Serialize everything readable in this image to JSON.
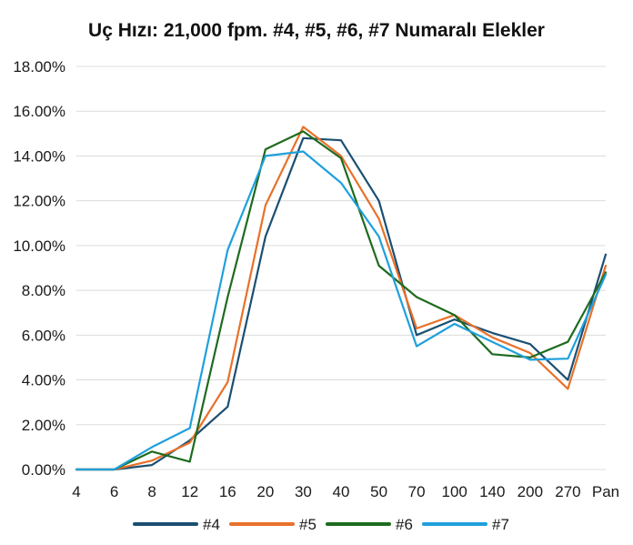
{
  "chart_data": {
    "type": "line",
    "title": "Uç Hızı: 21,000 fpm. #4, #5, #6, #7 Numaralı Elekler",
    "xlabel": "",
    "ylabel": "",
    "categories": [
      "4",
      "6",
      "8",
      "12",
      "16",
      "20",
      "30",
      "40",
      "50",
      "70",
      "100",
      "140",
      "200",
      "270",
      "Pan"
    ],
    "ylim": [
      0,
      18
    ],
    "yticks": [
      "0.00%",
      "2.00%",
      "4.00%",
      "6.00%",
      "8.00%",
      "10.00%",
      "12.00%",
      "14.00%",
      "16.00%",
      "18.00%"
    ],
    "grid": true,
    "legend_position": "bottom",
    "series": [
      {
        "name": "#4",
        "color": "#1b4f72",
        "values": [
          0,
          0,
          0.2,
          1.3,
          2.8,
          10.4,
          14.8,
          14.7,
          12.0,
          6.0,
          6.7,
          6.1,
          5.6,
          4.0,
          9.6
        ]
      },
      {
        "name": "#5",
        "color": "#e8712a",
        "values": [
          0,
          0,
          0.4,
          1.2,
          3.9,
          11.8,
          15.3,
          14.0,
          11.2,
          6.3,
          6.9,
          5.9,
          5.2,
          3.6,
          9.1
        ]
      },
      {
        "name": "#6",
        "color": "#1e6b1e",
        "values": [
          0,
          0,
          0.8,
          0.35,
          7.7,
          14.3,
          15.1,
          13.9,
          9.1,
          7.7,
          6.9,
          5.15,
          5.0,
          5.7,
          8.8
        ]
      },
      {
        "name": "#7",
        "color": "#1fa0dc",
        "values": [
          0,
          0,
          1.0,
          1.85,
          9.8,
          14.0,
          14.2,
          12.8,
          10.4,
          5.5,
          6.5,
          5.7,
          4.9,
          4.95,
          8.7
        ]
      }
    ]
  }
}
